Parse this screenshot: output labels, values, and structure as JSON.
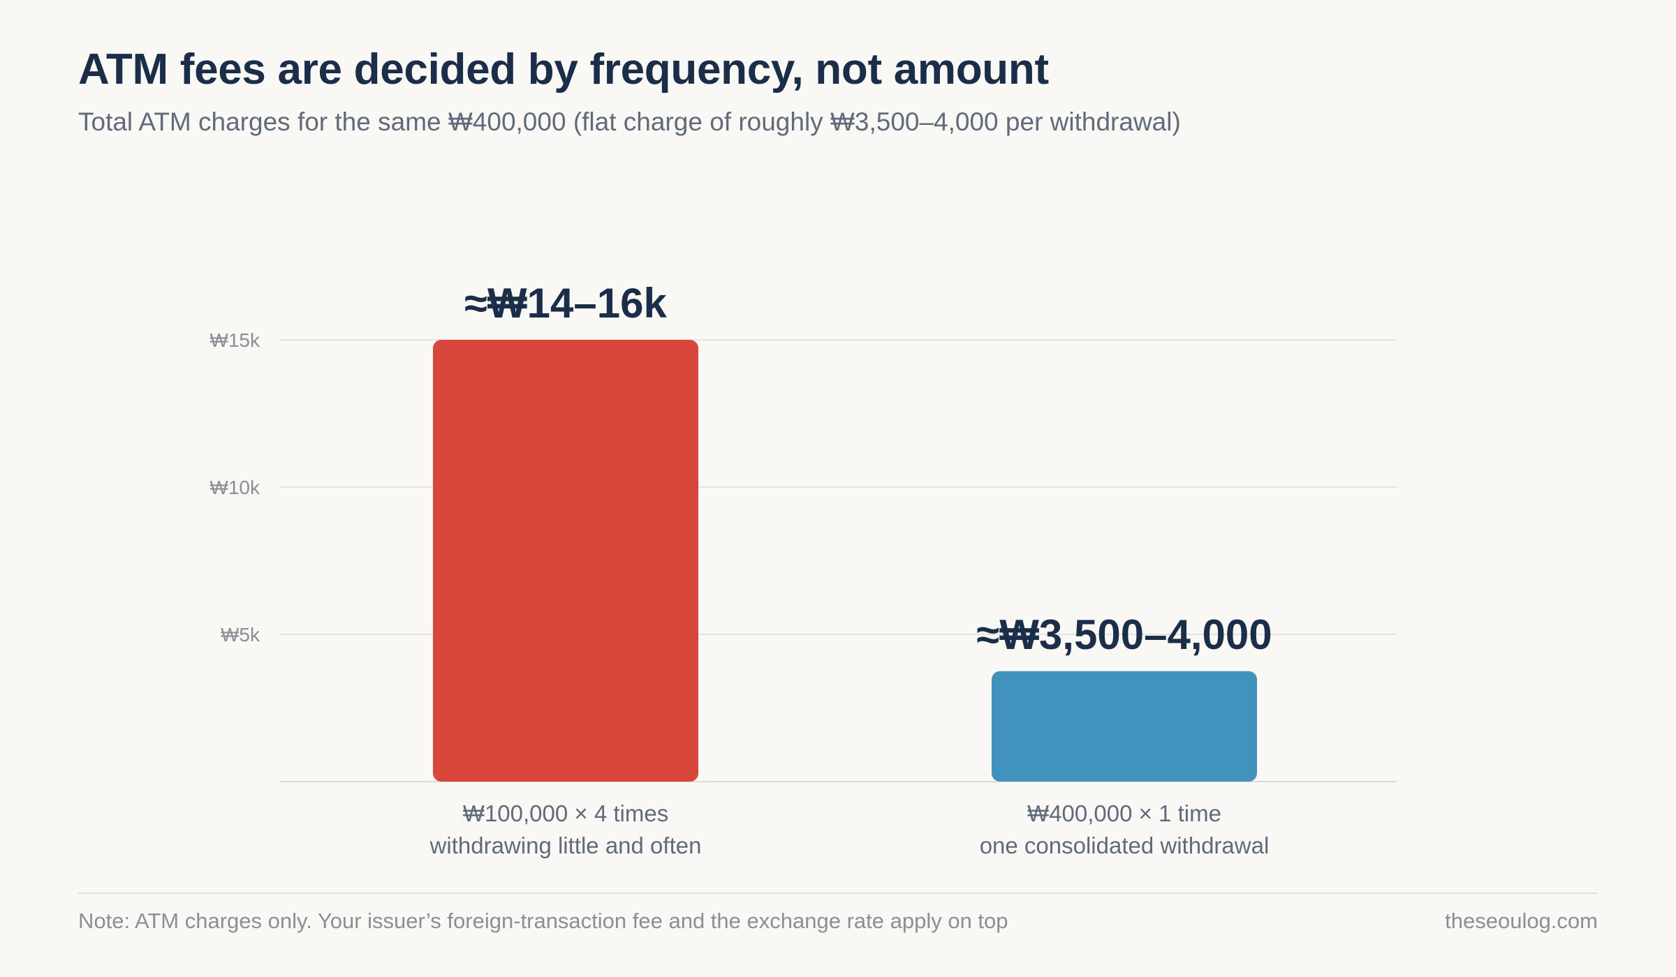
{
  "title": "ATM fees are decided by frequency, not amount",
  "subtitle": "Total ATM charges for the same ₩400,000 (flat charge of roughly ₩3,500–4,000 per withdrawal)",
  "footer": {
    "note": "Note: ATM charges only. Your issuer’s foreign-transaction fee and the exchange rate apply on top",
    "source": "theseoulog.com"
  },
  "chart_data": {
    "type": "bar",
    "categories": [
      [
        "₩100,000 × 4 times",
        "withdrawing little and often"
      ],
      [
        "₩400,000 × 1 time",
        "one consolidated withdrawal"
      ]
    ],
    "values": [
      15000,
      3750
    ],
    "value_labels": [
      "≈₩14–16k",
      "≈₩3,500–4,000"
    ],
    "colors": [
      "#d9463b",
      "#4193bd"
    ],
    "ylim": [
      0,
      15000
    ],
    "yticks": [
      5000,
      10000,
      15000
    ],
    "ytick_labels": [
      "₩5k",
      "₩10k",
      "₩15k"
    ],
    "grid": true,
    "xlabel": "",
    "ylabel": ""
  }
}
